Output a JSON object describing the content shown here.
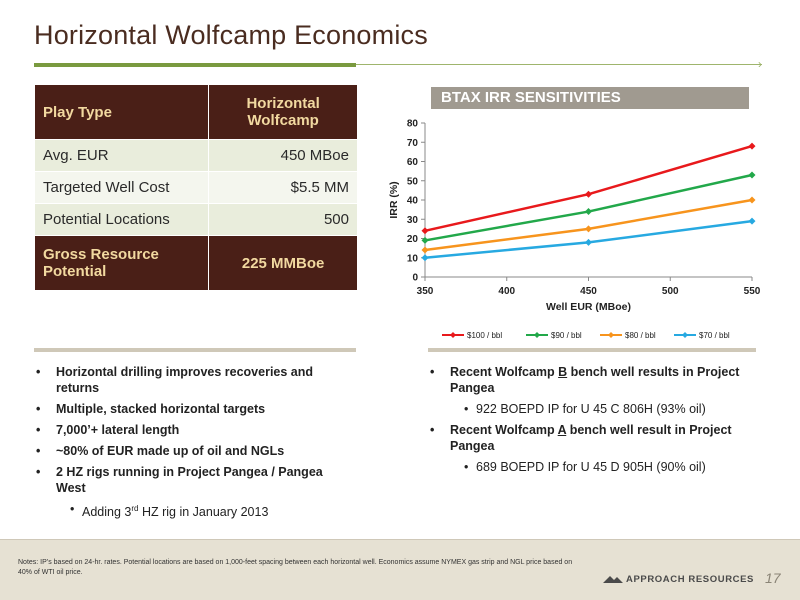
{
  "title": "Horizontal Wolfcamp Economics",
  "table": {
    "header": {
      "label": "Play Type",
      "value": "Horizontal Wolfcamp"
    },
    "rows": [
      {
        "label": "Avg. EUR",
        "value": "450 MBoe"
      },
      {
        "label": "Targeted Well Cost",
        "value": "$5.5 MM"
      },
      {
        "label": "Potential Locations",
        "value": "500"
      }
    ],
    "footer": {
      "label": "Gross Resource Potential",
      "value": "225 MMBoe"
    }
  },
  "chart_data": {
    "type": "line",
    "title": "BTAX IRR SENSITIVITIES",
    "xlabel": "Well EUR (MBoe)",
    "ylabel": "IRR (%)",
    "x": [
      350,
      450,
      550
    ],
    "xlim": [
      350,
      550
    ],
    "ylim": [
      0,
      80
    ],
    "xticks": [
      350,
      400,
      450,
      500,
      550
    ],
    "yticks": [
      0,
      10,
      20,
      30,
      40,
      50,
      60,
      70,
      80
    ],
    "grid": false,
    "legend": "bottom",
    "series": [
      {
        "name": "$100 / bbl",
        "values": [
          24,
          43,
          68
        ],
        "color": "#e8191c",
        "marker": "diamond"
      },
      {
        "name": "$90 / bbl",
        "values": [
          19,
          34,
          53
        ],
        "color": "#22a84a",
        "marker": "diamond"
      },
      {
        "name": "$80 / bbl",
        "values": [
          14,
          25,
          40
        ],
        "color": "#f7941d",
        "marker": "diamond"
      },
      {
        "name": "$70 / bbl",
        "values": [
          10,
          18,
          29
        ],
        "color": "#27a9e1",
        "marker": "diamond"
      }
    ]
  },
  "bullets_left": {
    "b1": "Horizontal drilling improves recoveries and returns",
    "b2": "Multiple, stacked horizontal targets",
    "b3": "7,000’+ lateral length",
    "b4": "~80% of EUR made up of oil and NGLs",
    "b5": "2 HZ rigs running in Project Pangea / Pangea West",
    "sub_pre": "Adding 3",
    "sub_sup": "rd",
    "sub_post": " HZ rig in January 2013"
  },
  "bullets_right": {
    "b1_pre": "Recent Wolfcamp ",
    "b1_u": "B",
    "b1_post": " bench well results in Project Pangea",
    "s1": "922 BOEPD IP for U 45 C 806H (93% oil)",
    "b2_pre": "Recent Wolfcamp ",
    "b2_u": "A",
    "b2_post": " bench well result in Project Pangea",
    "s2": "689 BOEPD IP for U 45 D 905H (90% oil)"
  },
  "notes": "Notes: IP’s based on 24-hr. rates.  Potential locations are based on 1,000-feet spacing between each horizontal well.  Economics assume NYMEX gas strip and NGL price based on 40% of WTI oil price.",
  "logo_text": "APPROACH RESOURCES",
  "page_number": "17",
  "colors": {
    "brown": "#4a1f17",
    "gold_text": "#f2d9a0",
    "green_rule": "#7a9a3f",
    "band": "#e6e1d3"
  }
}
